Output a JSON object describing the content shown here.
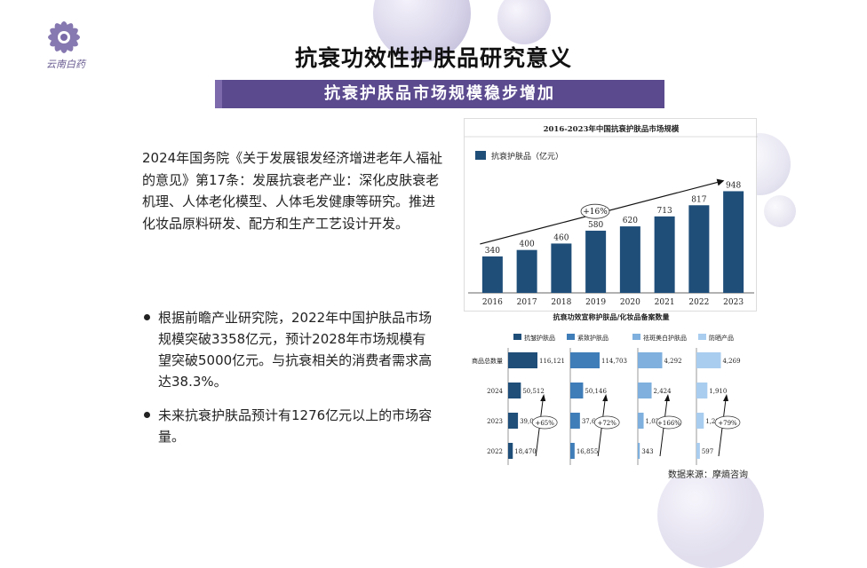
{
  "header": {
    "title": "抗衰功效性护肤品研究意义",
    "subtitle": "抗衰护肤品市场规模稳步增加",
    "logo_text": "云南白药"
  },
  "body_text": {
    "paragraph": "2024年国务院《关于发展银发经济增进老年人福祉的意见》第17条：发展抗衰老产业：深化皮肤衰老机理、人体老化模型、人体毛发健康等研究。推进化妆品原料研发、配方和生产工艺设计开发。",
    "bullets": [
      "根据前瞻产业研究院，2022年中国护肤品市场规模突破3358亿元，预计2028年市场规模有望突破5000亿元。与抗衰相关的消费者需求高达38.3%。",
      "未来抗衰护肤品预计有1276亿元以上的市场容量。"
    ]
  },
  "source": "数据来源：摩熵咨询",
  "colors": {
    "accent": "#5b4a8e",
    "bar_dark": "#1f4e79",
    "bar_mid": "#3f7db8",
    "bar_light": "#7fb0de",
    "bar_pale": "#a9cdef"
  },
  "chart_data": [
    {
      "type": "bar",
      "title": "2016-2023年中国抗衰护肤品市场规模",
      "legend": "抗衰护肤品（亿元）",
      "categories": [
        "2016",
        "2017",
        "2018",
        "2019",
        "2020",
        "2021",
        "2022",
        "2023"
      ],
      "values": [
        340,
        400,
        460,
        580,
        620,
        713,
        817,
        948
      ],
      "value_labels": [
        "340",
        "400",
        "460",
        "580",
        "620",
        "713",
        "817",
        "948"
      ],
      "annotation": "+16%",
      "ylim": [
        0,
        1000
      ]
    },
    {
      "type": "bar",
      "title": "抗衰功效宣称护肤品/化妆品备案数量",
      "orientation": "horizontal",
      "categories": [
        "商品总数量",
        "2024",
        "2023",
        "2022"
      ],
      "series": [
        {
          "name": "抗皱护肤品",
          "values": [
            116121,
            50512,
            39044,
            18470
          ],
          "labels": [
            "116,121",
            "50,512",
            "39,044",
            "18,470"
          ],
          "growth": "+65%"
        },
        {
          "name": "紧致护肤品",
          "values": [
            114703,
            50146,
            37688,
            16855
          ],
          "labels": [
            "114,703",
            "50,146",
            "37,688",
            "16,855"
          ],
          "growth": "+72%"
        },
        {
          "name": "祛斑美白护肤品",
          "values": [
            4292,
            2424,
            1022,
            343
          ],
          "labels": [
            "4,292",
            "2,424",
            "1,022",
            "343"
          ],
          "growth": "+166%"
        },
        {
          "name": "防晒产品",
          "values": [
            4269,
            1910,
            1283,
            597
          ],
          "labels": [
            "4,269",
            "1,910",
            "1,283",
            "597"
          ],
          "growth": "+79%"
        }
      ]
    }
  ]
}
